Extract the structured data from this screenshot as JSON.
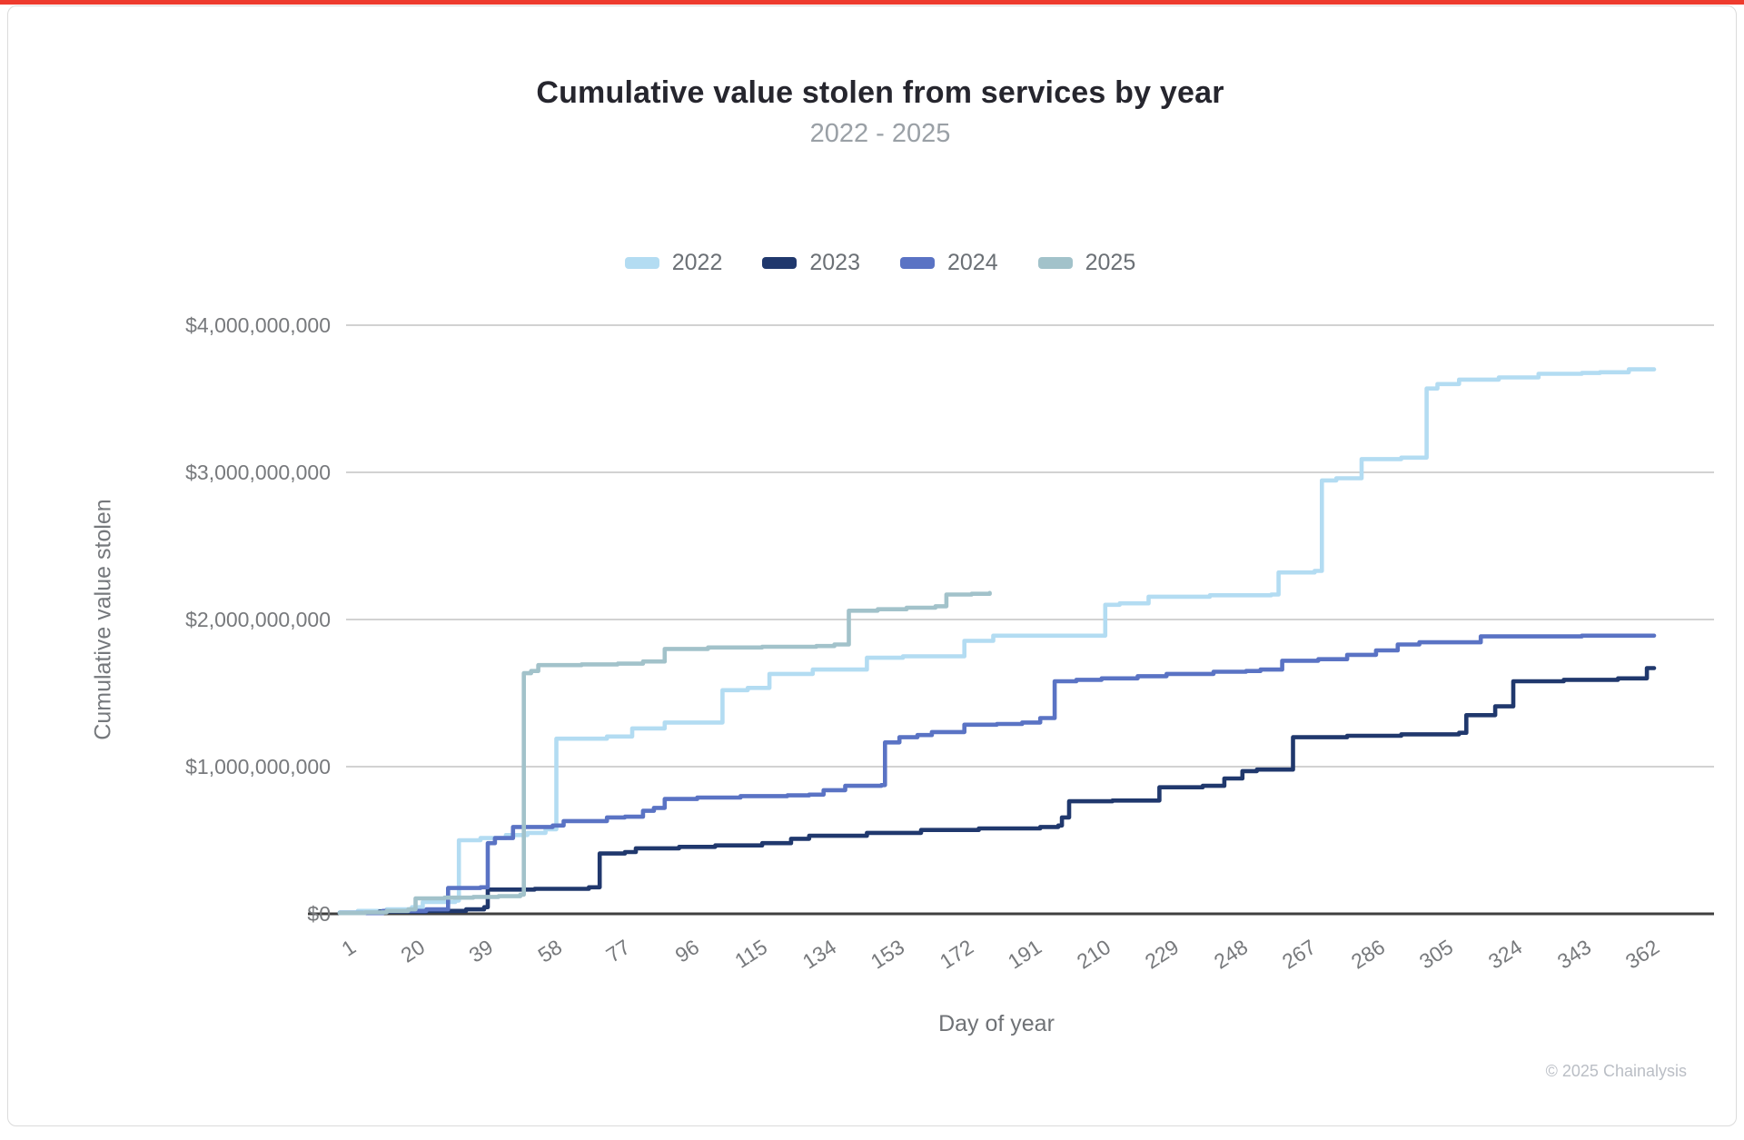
{
  "brand": {
    "top_bar_color": "#ee3b2e"
  },
  "footer": {
    "copyright": "© 2025 Chainalysis"
  },
  "chart_data": {
    "type": "line",
    "subtype": "cumulative-step",
    "title": "Cumulative value stolen from services by year",
    "subtitle": "2022 - 2025",
    "x_label": "Day of year",
    "y_label": "Cumulative value stolen",
    "legend_position": "top",
    "grid": "horizontal",
    "x_range_days": [
      1,
      365
    ],
    "y_range_usd": [
      0,
      4000000000
    ],
    "x_ticks": [
      1,
      20,
      39,
      58,
      77,
      96,
      115,
      134,
      153,
      172,
      191,
      210,
      229,
      248,
      267,
      286,
      305,
      324,
      343,
      362
    ],
    "y_ticks": [
      {
        "value_b": 4,
        "label": "$4,000,000,000"
      },
      {
        "value_b": 3,
        "label": "$3,000,000,000"
      },
      {
        "value_b": 2,
        "label": "$2,000,000,000"
      },
      {
        "value_b": 1,
        "label": "$1,000,000,000"
      },
      {
        "value_b": 0,
        "label": "$0"
      }
    ],
    "value_unit": "USD billions",
    "series": [
      {
        "name": "2022",
        "color": "#b3dcf2",
        "points": [
          [
            1,
            0.01
          ],
          [
            6,
            0.02
          ],
          [
            14,
            0.03
          ],
          [
            21,
            0.045
          ],
          [
            24,
            0.08
          ],
          [
            33,
            0.09
          ],
          [
            34,
            0.5
          ],
          [
            40,
            0.515
          ],
          [
            47,
            0.535
          ],
          [
            53,
            0.55
          ],
          [
            58,
            0.575
          ],
          [
            61,
            1.19
          ],
          [
            75,
            1.205
          ],
          [
            82,
            1.26
          ],
          [
            91,
            1.3
          ],
          [
            107,
            1.52
          ],
          [
            114,
            1.535
          ],
          [
            120,
            1.63
          ],
          [
            132,
            1.66
          ],
          [
            147,
            1.74
          ],
          [
            157,
            1.75
          ],
          [
            174,
            1.855
          ],
          [
            182,
            1.89
          ],
          [
            213,
            2.1
          ],
          [
            217,
            2.11
          ],
          [
            225,
            2.155
          ],
          [
            242,
            2.165
          ],
          [
            259,
            2.17
          ],
          [
            261,
            2.32
          ],
          [
            271,
            2.33
          ],
          [
            273,
            2.945
          ],
          [
            277,
            2.96
          ],
          [
            284,
            3.09
          ],
          [
            295,
            3.1
          ],
          [
            302,
            3.57
          ],
          [
            305,
            3.6
          ],
          [
            311,
            3.63
          ],
          [
            322,
            3.645
          ],
          [
            333,
            3.67
          ],
          [
            345,
            3.675
          ],
          [
            350,
            3.68
          ],
          [
            358,
            3.7
          ],
          [
            365,
            3.7
          ]
        ]
      },
      {
        "name": "2023",
        "color": "#20386d",
        "points": [
          [
            1,
            0.005
          ],
          [
            12,
            0.015
          ],
          [
            25,
            0.02
          ],
          [
            36,
            0.03
          ],
          [
            41,
            0.045
          ],
          [
            42,
            0.165
          ],
          [
            55,
            0.17
          ],
          [
            70,
            0.18
          ],
          [
            73,
            0.41
          ],
          [
            80,
            0.42
          ],
          [
            83,
            0.445
          ],
          [
            95,
            0.455
          ],
          [
            105,
            0.465
          ],
          [
            118,
            0.48
          ],
          [
            126,
            0.51
          ],
          [
            131,
            0.53
          ],
          [
            147,
            0.55
          ],
          [
            162,
            0.57
          ],
          [
            178,
            0.58
          ],
          [
            195,
            0.59
          ],
          [
            200,
            0.6
          ],
          [
            201,
            0.655
          ],
          [
            203,
            0.765
          ],
          [
            215,
            0.77
          ],
          [
            228,
            0.86
          ],
          [
            240,
            0.87
          ],
          [
            246,
            0.92
          ],
          [
            251,
            0.97
          ],
          [
            255,
            0.98
          ],
          [
            265,
            1.2
          ],
          [
            280,
            1.21
          ],
          [
            295,
            1.22
          ],
          [
            311,
            1.23
          ],
          [
            313,
            1.35
          ],
          [
            321,
            1.41
          ],
          [
            326,
            1.58
          ],
          [
            340,
            1.59
          ],
          [
            355,
            1.6
          ],
          [
            363,
            1.67
          ],
          [
            365,
            1.67
          ]
        ]
      },
      {
        "name": "2024",
        "color": "#5a73c4",
        "points": [
          [
            1,
            0.005
          ],
          [
            13,
            0.02
          ],
          [
            25,
            0.03
          ],
          [
            31,
            0.175
          ],
          [
            40,
            0.18
          ],
          [
            42,
            0.48
          ],
          [
            44,
            0.515
          ],
          [
            49,
            0.59
          ],
          [
            60,
            0.6
          ],
          [
            63,
            0.63
          ],
          [
            75,
            0.655
          ],
          [
            80,
            0.66
          ],
          [
            85,
            0.7
          ],
          [
            88,
            0.72
          ],
          [
            91,
            0.78
          ],
          [
            100,
            0.79
          ],
          [
            112,
            0.8
          ],
          [
            125,
            0.805
          ],
          [
            131,
            0.81
          ],
          [
            135,
            0.84
          ],
          [
            141,
            0.87
          ],
          [
            151,
            0.875
          ],
          [
            152,
            1.165
          ],
          [
            156,
            1.2
          ],
          [
            161,
            1.215
          ],
          [
            165,
            1.235
          ],
          [
            174,
            1.285
          ],
          [
            183,
            1.29
          ],
          [
            190,
            1.3
          ],
          [
            195,
            1.33
          ],
          [
            199,
            1.58
          ],
          [
            205,
            1.59
          ],
          [
            212,
            1.6
          ],
          [
            222,
            1.615
          ],
          [
            230,
            1.63
          ],
          [
            243,
            1.645
          ],
          [
            252,
            1.65
          ],
          [
            256,
            1.66
          ],
          [
            262,
            1.72
          ],
          [
            272,
            1.73
          ],
          [
            280,
            1.76
          ],
          [
            288,
            1.79
          ],
          [
            294,
            1.83
          ],
          [
            300,
            1.845
          ],
          [
            317,
            1.885
          ],
          [
            330,
            1.885
          ],
          [
            345,
            1.89
          ],
          [
            365,
            1.89
          ]
        ]
      },
      {
        "name": "2025",
        "color": "#a2c2ca",
        "points": [
          [
            1,
            0.005
          ],
          [
            8,
            0.01
          ],
          [
            14,
            0.02
          ],
          [
            20,
            0.03
          ],
          [
            22,
            0.105
          ],
          [
            30,
            0.11
          ],
          [
            38,
            0.115
          ],
          [
            45,
            0.12
          ],
          [
            51,
            0.13
          ],
          [
            52,
            1.635
          ],
          [
            54,
            1.65
          ],
          [
            56,
            1.69
          ],
          [
            68,
            1.695
          ],
          [
            78,
            1.7
          ],
          [
            85,
            1.715
          ],
          [
            91,
            1.8
          ],
          [
            103,
            1.81
          ],
          [
            118,
            1.815
          ],
          [
            133,
            1.82
          ],
          [
            138,
            1.83
          ],
          [
            142,
            2.06
          ],
          [
            150,
            2.07
          ],
          [
            158,
            2.08
          ],
          [
            166,
            2.09
          ],
          [
            169,
            2.17
          ],
          [
            176,
            2.175
          ],
          [
            181,
            2.18
          ]
        ]
      }
    ]
  }
}
